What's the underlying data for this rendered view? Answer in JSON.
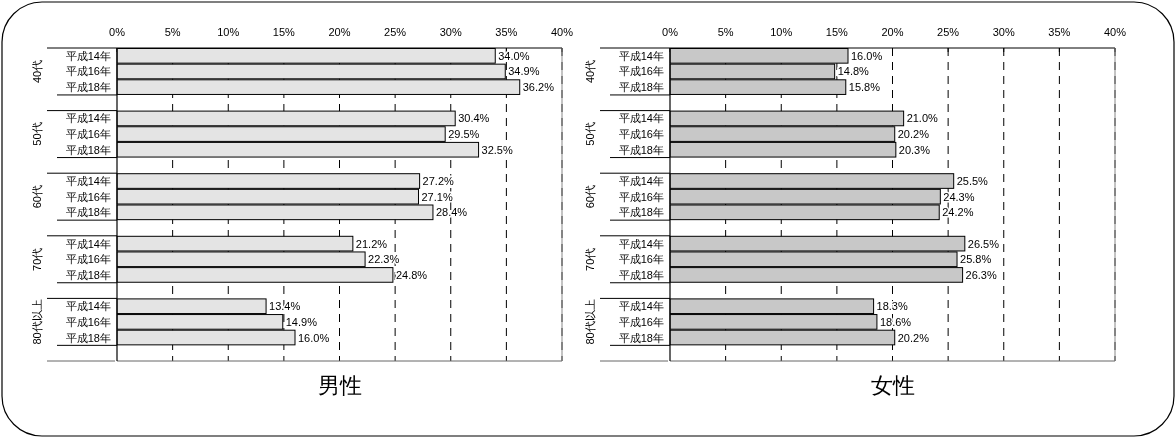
{
  "chart_data": [
    {
      "type": "bar",
      "orientation": "horizontal",
      "title": "男性",
      "categories": [
        "平成14年",
        "平成16年",
        "平成18年",
        "平成14年",
        "平成16年",
        "平成18年",
        "平成14年",
        "平成16年",
        "平成18年",
        "平成14年",
        "平成16年",
        "平成18年",
        "平成14年",
        "平成16年",
        "平成18年"
      ],
      "annotations": [
        "40代",
        "50代",
        "60代",
        "70代",
        "80代以上"
      ],
      "values": [
        34.0,
        34.9,
        36.2,
        30.4,
        29.5,
        32.5,
        27.2,
        27.1,
        28.4,
        21.2,
        22.3,
        24.8,
        13.4,
        14.9,
        16.0
      ],
      "value_labels": [
        "34.0%",
        "34.9%",
        "36.2%",
        "30.4%",
        "29.5%",
        "32.5%",
        "27.2%",
        "27.1%",
        "28.4%",
        "21.2%",
        "22.3%",
        "24.8%",
        "13.4%",
        "14.9%",
        "16.0%"
      ],
      "color": "#e4e4e4",
      "xlim": [
        0,
        40
      ],
      "xticks": [
        {
          "value": 0,
          "label": "0%"
        },
        {
          "value": 5,
          "label": "5%"
        },
        {
          "value": 10,
          "label": "10%"
        },
        {
          "value": 15,
          "label": "15%"
        },
        {
          "value": 20,
          "label": "20%"
        },
        {
          "value": 25,
          "label": "25%"
        },
        {
          "value": 30,
          "label": "30%"
        },
        {
          "value": 35,
          "label": "35%"
        },
        {
          "value": 40,
          "label": "40%"
        }
      ],
      "grid": "x"
    },
    {
      "type": "bar",
      "orientation": "horizontal",
      "title": "女性",
      "categories": [
        "平成14年",
        "平成16年",
        "平成18年",
        "平成14年",
        "平成16年",
        "平成18年",
        "平成14年",
        "平成16年",
        "平成18年",
        "平成14年",
        "平成16年",
        "平成18年",
        "平成14年",
        "平成16年",
        "平成18年"
      ],
      "annotations": [
        "40代",
        "50代",
        "60代",
        "70代",
        "80代以上"
      ],
      "values": [
        16.0,
        14.8,
        15.8,
        21.0,
        20.2,
        20.3,
        25.5,
        24.3,
        24.2,
        26.5,
        25.8,
        26.3,
        18.3,
        18.6,
        20.2
      ],
      "value_labels": [
        "16.0%",
        "14.8%",
        "15.8%",
        "21.0%",
        "20.2%",
        "20.3%",
        "25.5%",
        "24.3%",
        "24.2%",
        "26.5%",
        "25.8%",
        "26.3%",
        "18.3%",
        "18.6%",
        "20.2%"
      ],
      "color": "#c8c8c8",
      "xlim": [
        0,
        40
      ],
      "xticks": [
        {
          "value": 0,
          "label": "0%"
        },
        {
          "value": 5,
          "label": "5%"
        },
        {
          "value": 10,
          "label": "10%"
        },
        {
          "value": 15,
          "label": "15%"
        },
        {
          "value": 20,
          "label": "20%"
        },
        {
          "value": 25,
          "label": "25%"
        },
        {
          "value": 30,
          "label": "30%"
        },
        {
          "value": 35,
          "label": "35%"
        },
        {
          "value": 40,
          "label": "40%"
        }
      ],
      "grid": "x"
    }
  ]
}
